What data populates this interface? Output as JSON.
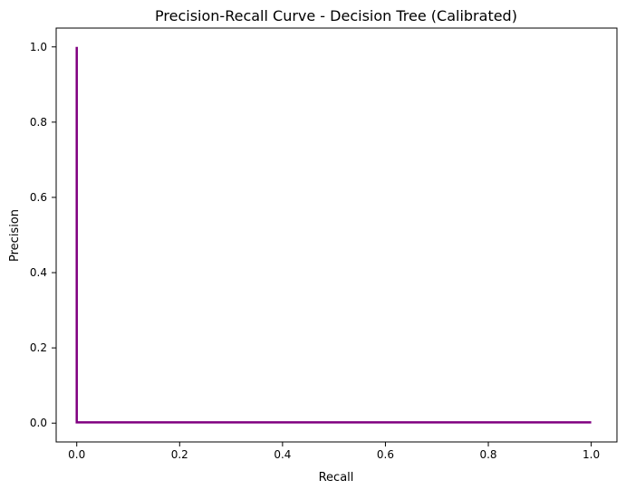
{
  "chart_data": {
    "type": "line",
    "title": "Precision-Recall Curve - Decision Tree (Calibrated)",
    "xlabel": "Recall",
    "ylabel": "Precision",
    "xlim": [
      -0.04,
      1.05
    ],
    "ylim": [
      -0.05,
      1.05
    ],
    "xticks": [
      0.0,
      0.2,
      0.4,
      0.6,
      0.8,
      1.0
    ],
    "yticks": [
      0.0,
      0.2,
      0.4,
      0.6,
      0.8,
      1.0
    ],
    "xtick_labels": [
      "0.0",
      "0.2",
      "0.4",
      "0.6",
      "0.8",
      "1.0"
    ],
    "ytick_labels": [
      "0.0",
      "0.2",
      "0.4",
      "0.6",
      "0.8",
      "1.0"
    ],
    "grid": false,
    "legend": "none",
    "series": [
      {
        "color": "#800080",
        "x": [
          0.0,
          0.0,
          1.0
        ],
        "y": [
          1.0,
          0.002,
          0.002
        ]
      }
    ]
  }
}
